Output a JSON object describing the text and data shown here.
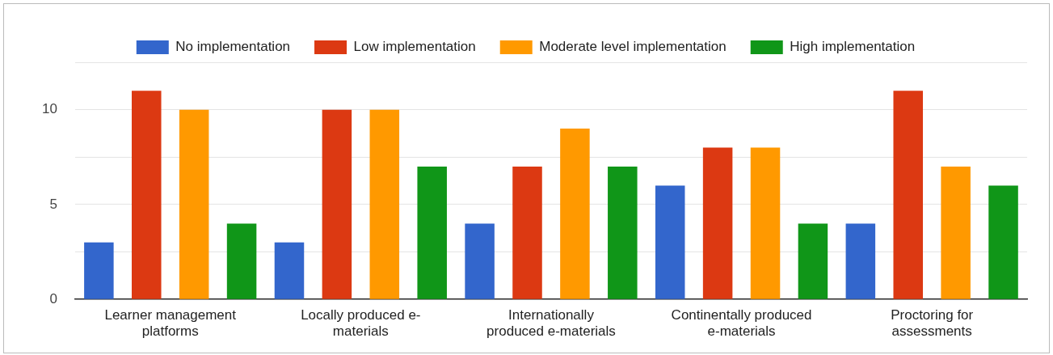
{
  "chart_data": {
    "type": "bar",
    "categories": [
      "Learner management platforms",
      "Locally produced e-materials",
      "Internationally produced e-materials",
      "Continentally produced e-materials",
      "Proctoring for assessments"
    ],
    "series": [
      {
        "name": "No implementation",
        "color": "#3366cc",
        "values": [
          3,
          3,
          4,
          6,
          4
        ]
      },
      {
        "name": "Low implementation",
        "color": "#dc3912",
        "values": [
          11,
          10,
          7,
          8,
          11
        ]
      },
      {
        "name": "Moderate level implementation",
        "color": "#ff9900",
        "values": [
          10,
          10,
          9,
          8,
          7
        ]
      },
      {
        "name": "High implementation",
        "color": "#109618",
        "values": [
          4,
          7,
          7,
          4,
          6
        ]
      }
    ],
    "ylim": [
      0,
      12.5
    ],
    "yticks": [
      0,
      {
        "value": 2.5,
        "label": null
      },
      5,
      {
        "value": 7.5,
        "label": null
      },
      10,
      {
        "value": 12.5,
        "label": null
      }
    ],
    "grid": "y",
    "legend": "top"
  }
}
